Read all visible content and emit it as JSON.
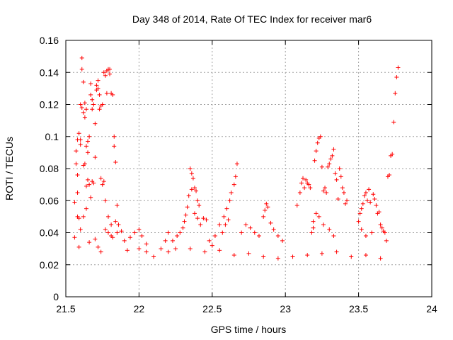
{
  "chart_data": {
    "type": "scatter",
    "title": "Day 348 of 2014, Rate Of TEC Index for receiver mar6",
    "xlabel": "GPS time / hours",
    "ylabel": "ROTI / TECUs",
    "xlim": [
      21.5,
      24
    ],
    "ylim": [
      0,
      0.16
    ],
    "xticks": [
      21.5,
      22,
      22.5,
      23,
      23.5,
      24
    ],
    "xtick_labels": [
      "21.5",
      "22",
      "22.5",
      "23",
      "23.5",
      "24"
    ],
    "yticks": [
      0,
      0.02,
      0.04,
      0.06,
      0.08,
      0.1,
      0.12,
      0.14,
      0.16
    ],
    "ytick_labels": [
      "0",
      "0.02",
      "0.04",
      "0.06",
      "0.08",
      "0.1",
      "0.12",
      "0.14",
      "0.16"
    ],
    "grid": true,
    "marker": "plus",
    "color": "#ff0000",
    "series": [
      {
        "name": "ROTI",
        "points": [
          [
            21.56,
            0.037
          ],
          [
            21.56,
            0.059
          ],
          [
            21.57,
            0.091
          ],
          [
            21.57,
            0.083
          ],
          [
            21.58,
            0.076
          ],
          [
            21.58,
            0.065
          ],
          [
            21.58,
            0.098
          ],
          [
            21.59,
            0.102
          ],
          [
            21.59,
            0.049
          ],
          [
            21.59,
            0.031
          ],
          [
            21.6,
            0.095
          ],
          [
            21.6,
            0.098
          ],
          [
            21.6,
            0.12
          ],
          [
            21.61,
            0.142
          ],
          [
            21.61,
            0.149
          ],
          [
            21.61,
            0.118
          ],
          [
            21.62,
            0.115
          ],
          [
            21.62,
            0.134
          ],
          [
            21.62,
            0.082
          ],
          [
            21.63,
            0.112
          ],
          [
            21.63,
            0.121
          ],
          [
            21.63,
            0.083
          ],
          [
            21.64,
            0.094
          ],
          [
            21.64,
            0.117
          ],
          [
            21.64,
            0.069
          ],
          [
            21.65,
            0.09
          ],
          [
            21.65,
            0.097
          ],
          [
            21.65,
            0.073
          ],
          [
            21.66,
            0.1
          ],
          [
            21.66,
            0.07
          ],
          [
            21.67,
            0.126
          ],
          [
            21.67,
            0.133
          ],
          [
            21.67,
            0.062
          ],
          [
            21.68,
            0.072
          ],
          [
            21.68,
            0.117
          ],
          [
            21.68,
            0.123
          ],
          [
            21.69,
            0.12
          ],
          [
            21.69,
            0.071
          ],
          [
            21.7,
            0.108
          ],
          [
            21.7,
            0.087
          ],
          [
            21.71,
            0.132
          ],
          [
            21.71,
            0.129
          ],
          [
            21.72,
            0.13
          ],
          [
            21.72,
            0.135
          ],
          [
            21.73,
            0.117
          ],
          [
            21.73,
            0.126
          ],
          [
            21.74,
            0.119
          ],
          [
            21.74,
            0.074
          ],
          [
            21.75,
            0.12
          ],
          [
            21.75,
            0.07
          ],
          [
            21.76,
            0.14
          ],
          [
            21.76,
            0.072
          ],
          [
            21.77,
            0.138
          ],
          [
            21.77,
            0.06
          ],
          [
            21.78,
            0.141
          ],
          [
            21.78,
            0.127
          ],
          [
            21.79,
            0.142
          ],
          [
            21.79,
            0.05
          ],
          [
            21.8,
            0.139
          ],
          [
            21.8,
            0.142
          ],
          [
            21.81,
            0.127
          ],
          [
            21.81,
            0.045
          ],
          [
            21.82,
            0.126
          ],
          [
            21.82,
            0.037
          ],
          [
            21.83,
            0.1
          ],
          [
            21.83,
            0.094
          ],
          [
            21.84,
            0.084
          ],
          [
            21.84,
            0.047
          ],
          [
            21.85,
            0.057
          ],
          [
            21.85,
            0.04
          ],
          [
            21.58,
            0.05
          ],
          [
            21.6,
            0.042
          ],
          [
            21.62,
            0.05
          ],
          [
            21.64,
            0.055
          ],
          [
            21.66,
            0.034
          ],
          [
            21.7,
            0.036
          ],
          [
            21.72,
            0.031
          ],
          [
            21.74,
            0.028
          ],
          [
            21.77,
            0.042
          ],
          [
            21.79,
            0.04
          ],
          [
            21.81,
            0.038
          ],
          [
            21.86,
            0.045
          ],
          [
            21.88,
            0.041
          ],
          [
            21.9,
            0.035
          ],
          [
            21.92,
            0.029
          ],
          [
            21.94,
            0.037
          ],
          [
            21.97,
            0.04
          ],
          [
            22.0,
            0.042
          ],
          [
            22.02,
            0.038
          ],
          [
            22.05,
            0.033
          ],
          [
            22.35,
            0.08
          ],
          [
            22.36,
            0.077
          ],
          [
            22.37,
            0.074
          ],
          [
            22.38,
            0.068
          ],
          [
            22.39,
            0.066
          ],
          [
            22.4,
            0.06
          ],
          [
            22.41,
            0.057
          ],
          [
            22.36,
            0.067
          ],
          [
            22.34,
            0.063
          ],
          [
            22.33,
            0.056
          ],
          [
            22.32,
            0.051
          ],
          [
            22.31,
            0.047
          ],
          [
            22.38,
            0.052
          ],
          [
            22.4,
            0.049
          ],
          [
            22.42,
            0.045
          ],
          [
            22.44,
            0.049
          ],
          [
            22.46,
            0.048
          ],
          [
            22.3,
            0.043
          ],
          [
            22.28,
            0.04
          ],
          [
            22.26,
            0.038
          ],
          [
            22.23,
            0.035
          ],
          [
            22.2,
            0.04
          ],
          [
            22.18,
            0.035
          ],
          [
            22.48,
            0.035
          ],
          [
            22.5,
            0.032
          ],
          [
            22.52,
            0.038
          ],
          [
            22.55,
            0.045
          ],
          [
            22.58,
            0.05
          ],
          [
            22.6,
            0.055
          ],
          [
            22.62,
            0.06
          ],
          [
            22.63,
            0.065
          ],
          [
            22.65,
            0.07
          ],
          [
            22.66,
            0.075
          ],
          [
            22.67,
            0.083
          ],
          [
            22.61,
            0.048
          ],
          [
            22.59,
            0.045
          ],
          [
            22.57,
            0.04
          ],
          [
            22.7,
            0.04
          ],
          [
            22.73,
            0.045
          ],
          [
            22.76,
            0.043
          ],
          [
            22.79,
            0.04
          ],
          [
            22.82,
            0.038
          ],
          [
            22.85,
            0.05
          ],
          [
            22.86,
            0.054
          ],
          [
            22.87,
            0.058
          ],
          [
            22.88,
            0.056
          ],
          [
            22.9,
            0.046
          ],
          [
            22.92,
            0.042
          ],
          [
            22.95,
            0.038
          ],
          [
            22.98,
            0.035
          ],
          [
            23.08,
            0.057
          ],
          [
            23.1,
            0.065
          ],
          [
            23.11,
            0.071
          ],
          [
            23.12,
            0.074
          ],
          [
            23.13,
            0.068
          ],
          [
            23.14,
            0.073
          ],
          [
            23.15,
            0.071
          ],
          [
            23.16,
            0.07
          ],
          [
            23.17,
            0.068
          ],
          [
            23.18,
            0.04
          ],
          [
            23.19,
            0.047
          ],
          [
            23.2,
            0.085
          ],
          [
            23.21,
            0.091
          ],
          [
            23.22,
            0.096
          ],
          [
            23.23,
            0.099
          ],
          [
            23.24,
            0.1
          ],
          [
            23.25,
            0.081
          ],
          [
            23.26,
            0.066
          ],
          [
            23.27,
            0.068
          ],
          [
            23.28,
            0.065
          ],
          [
            23.29,
            0.081
          ],
          [
            23.3,
            0.083
          ],
          [
            23.31,
            0.086
          ],
          [
            23.32,
            0.088
          ],
          [
            23.33,
            0.092
          ],
          [
            23.34,
            0.077
          ],
          [
            23.35,
            0.073
          ],
          [
            23.36,
            0.061
          ],
          [
            23.37,
            0.08
          ],
          [
            23.38,
            0.075
          ],
          [
            23.39,
            0.068
          ],
          [
            23.4,
            0.065
          ],
          [
            23.41,
            0.058
          ],
          [
            23.42,
            0.06
          ],
          [
            23.21,
            0.052
          ],
          [
            23.23,
            0.05
          ],
          [
            23.26,
            0.045
          ],
          [
            23.19,
            0.043
          ],
          [
            23.3,
            0.042
          ],
          [
            23.33,
            0.038
          ],
          [
            23.5,
            0.047
          ],
          [
            23.51,
            0.052
          ],
          [
            23.52,
            0.055
          ],
          [
            23.53,
            0.058
          ],
          [
            23.54,
            0.063
          ],
          [
            23.55,
            0.065
          ],
          [
            23.56,
            0.06
          ],
          [
            23.57,
            0.067
          ],
          [
            23.58,
            0.059
          ],
          [
            23.6,
            0.064
          ],
          [
            23.61,
            0.061
          ],
          [
            23.62,
            0.057
          ],
          [
            23.63,
            0.052
          ],
          [
            23.64,
            0.053
          ],
          [
            23.65,
            0.045
          ],
          [
            23.66,
            0.043
          ],
          [
            23.67,
            0.041
          ],
          [
            23.68,
            0.04
          ],
          [
            23.69,
            0.035
          ],
          [
            23.7,
            0.075
          ],
          [
            23.71,
            0.076
          ],
          [
            23.72,
            0.088
          ],
          [
            23.73,
            0.089
          ],
          [
            23.74,
            0.109
          ],
          [
            23.75,
            0.127
          ],
          [
            23.76,
            0.137
          ],
          [
            23.77,
            0.143
          ],
          [
            23.52,
            0.042
          ],
          [
            23.55,
            0.038
          ],
          [
            23.59,
            0.04
          ],
          [
            22.0,
            0.03
          ],
          [
            22.05,
            0.028
          ],
          [
            22.1,
            0.025
          ],
          [
            22.15,
            0.03
          ],
          [
            22.2,
            0.028
          ],
          [
            22.25,
            0.03
          ],
          [
            22.35,
            0.03
          ],
          [
            22.45,
            0.028
          ],
          [
            22.55,
            0.029
          ],
          [
            22.65,
            0.026
          ],
          [
            22.75,
            0.027
          ],
          [
            22.85,
            0.025
          ],
          [
            22.95,
            0.024
          ],
          [
            23.05,
            0.025
          ],
          [
            23.15,
            0.026
          ],
          [
            23.25,
            0.027
          ],
          [
            23.35,
            0.028
          ],
          [
            23.45,
            0.025
          ],
          [
            23.55,
            0.026
          ],
          [
            23.65,
            0.024
          ]
        ]
      }
    ]
  }
}
